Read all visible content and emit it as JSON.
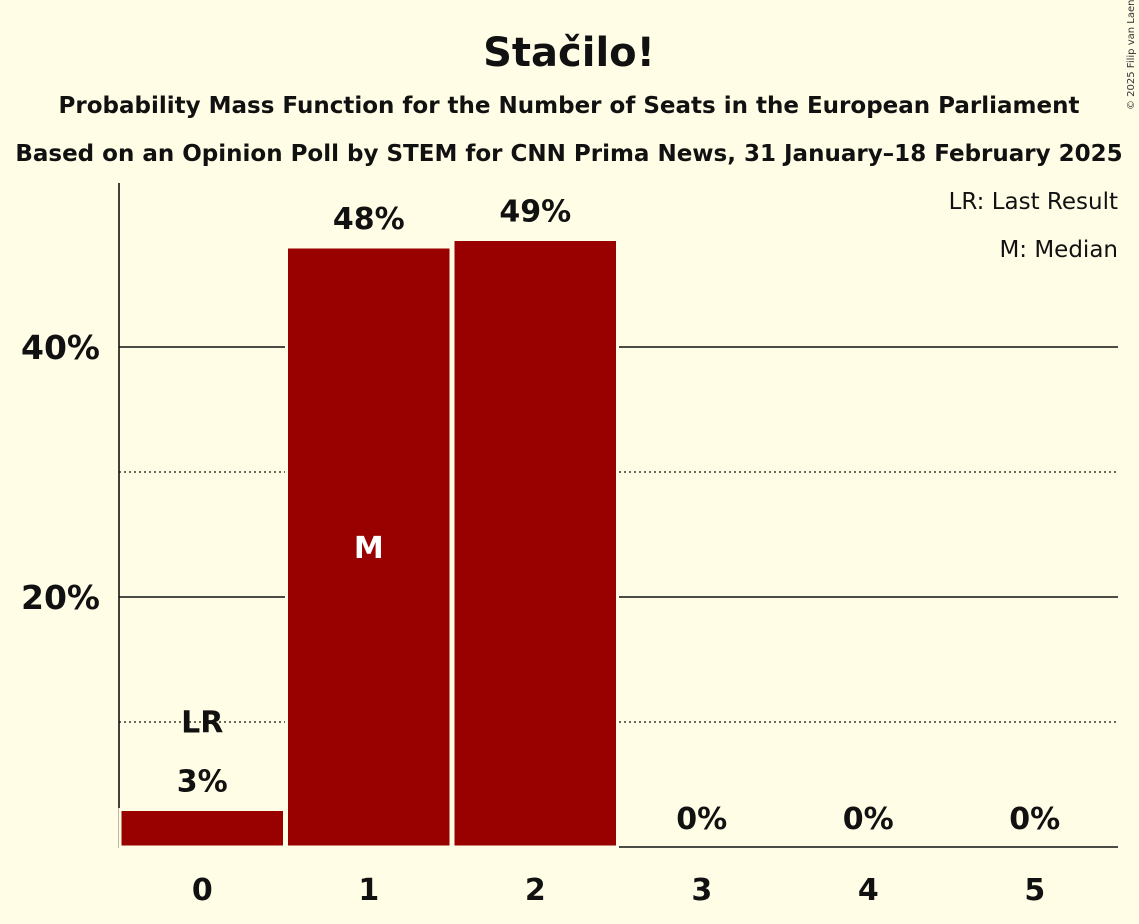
{
  "chart_data": {
    "type": "bar",
    "title": "Stačilo!",
    "subtitle1": "Probability Mass Function for the Number of Seats in the European Parliament",
    "subtitle2": "Based on an Opinion Poll by STEM for CNN Prima News, 31 January–18 February 2025",
    "copyright": "© 2025 Filip van Laenen",
    "categories": [
      "0",
      "1",
      "2",
      "3",
      "4",
      "5"
    ],
    "values": [
      3,
      48,
      48.6,
      0,
      0,
      0
    ],
    "value_labels": [
      "3%",
      "48%",
      "49%",
      "0%",
      "0%",
      "0%"
    ],
    "ylim": [
      0,
      53
    ],
    "y_ticks": [
      {
        "value": 20,
        "label": "20%"
      },
      {
        "value": 40,
        "label": "40%"
      }
    ],
    "minor_gridlines": [
      10,
      30
    ],
    "last_result_index": 0,
    "median_index": 1,
    "last_result_marker": "LR",
    "median_marker": "M",
    "legend": [
      "LR: Last Result",
      "M: Median"
    ],
    "legend_position": "top-right",
    "bar_color": "#990000",
    "background": "#fffde6"
  }
}
